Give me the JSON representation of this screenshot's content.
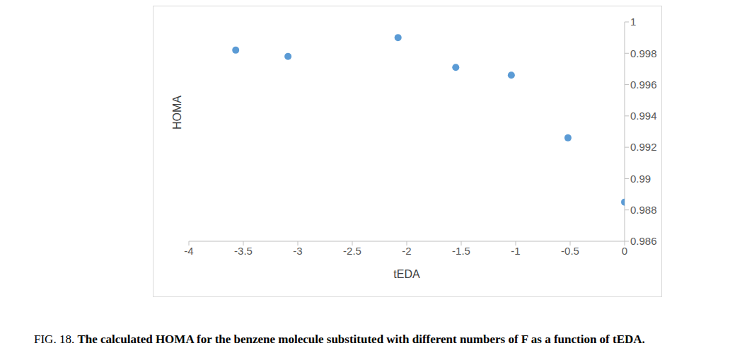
{
  "chart_data": {
    "type": "scatter",
    "figure_label": "FIG. 18.",
    "title": "The calculated HOMA for the benzene molecule substituted with different numbers of F as a function of tEDA.",
    "x_label": "tEDA",
    "y_label": "HOMA",
    "x": [
      -3.57,
      -3.09,
      -2.08,
      -1.55,
      -1.04,
      -0.52,
      0
    ],
    "values": [
      0.9982,
      0.9978,
      0.999,
      0.9971,
      0.9966,
      0.9926,
      0.9885
    ],
    "color": "#5b9bd5",
    "marker": "circle",
    "xlim": [
      -4,
      0
    ],
    "xticks": [
      -4,
      -3.5,
      -3,
      -2.5,
      -2,
      -1.5,
      -1,
      -0.5,
      0
    ],
    "ylim": [
      0.986,
      1
    ],
    "yticks": [
      0.986,
      0.988,
      0.99,
      0.992,
      0.994,
      0.996,
      0.998,
      1
    ],
    "grid": false
  }
}
